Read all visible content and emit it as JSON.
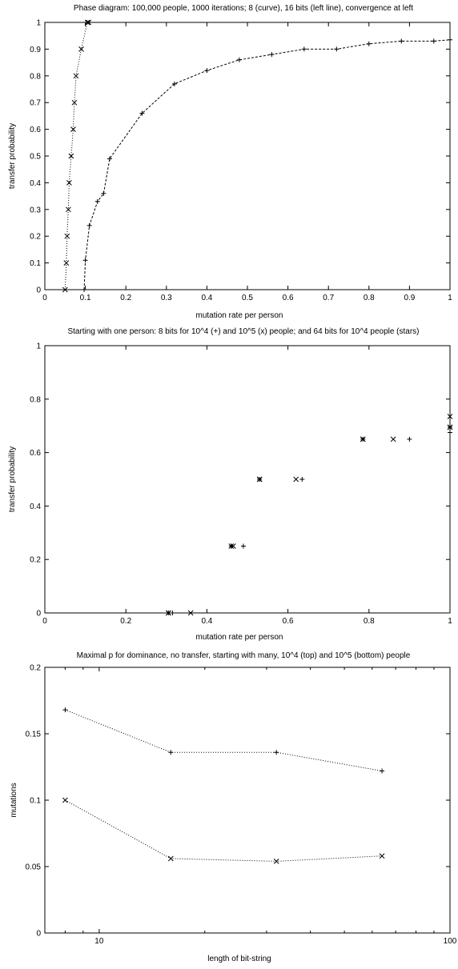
{
  "chart_data": [
    {
      "type": "line",
      "title": "Phase diagram: 100,000 people, 1000 iterations; 8 (curve), 16 bits (left line), convergence at left",
      "xlabel": "mutation rate per person",
      "ylabel": "transfer probability",
      "xlim": [
        0,
        1
      ],
      "ylim": [
        0,
        1
      ],
      "xscale": "linear",
      "xticks": [
        0,
        0.1,
        0.2,
        0.3,
        0.4,
        0.5,
        0.6,
        0.7,
        0.8,
        0.9,
        1
      ],
      "yticks": [
        0,
        0.1,
        0.2,
        0.3,
        0.4,
        0.5,
        0.6,
        0.7,
        0.8,
        0.9,
        1
      ],
      "xtick_labels": [
        "0",
        "0.1",
        "0.2",
        "0.3",
        "0.4",
        "0.5",
        "0.6",
        "0.7",
        "0.8",
        "0.9",
        "1"
      ],
      "ytick_labels": [
        "0",
        "0.1",
        "0.2",
        "0.3",
        "0.4",
        "0.5",
        "0.6",
        "0.7",
        "0.8",
        "0.9",
        "1"
      ],
      "grid": false,
      "series": [
        {
          "marker": "plus",
          "line": "dashed",
          "x": [
            0.097,
            0.1,
            0.11,
            0.13,
            0.145,
            0.16,
            0.24,
            0.32,
            0.4,
            0.48,
            0.56,
            0.64,
            0.72,
            0.8,
            0.88,
            0.96,
            1.0
          ],
          "y": [
            0.0,
            0.11,
            0.24,
            0.33,
            0.36,
            0.49,
            0.66,
            0.77,
            0.82,
            0.86,
            0.88,
            0.9,
            0.9,
            0.92,
            0.93,
            0.93,
            0.935
          ]
        },
        {
          "marker": "cross",
          "line": "dotted",
          "x": [
            0.05,
            0.053,
            0.055,
            0.058,
            0.06,
            0.065,
            0.07,
            0.073,
            0.077,
            0.09,
            0.105,
            0.108
          ],
          "y": [
            0.0,
            0.1,
            0.2,
            0.3,
            0.4,
            0.5,
            0.6,
            0.7,
            0.8,
            0.9,
            1.0,
            1.0
          ]
        }
      ]
    },
    {
      "type": "scatter",
      "title": "Starting with one person: 8 bits for 10^4 (+) and 10^5 (x) people; and 64 bits for 10^4 people (stars)",
      "xlabel": "mutation rate per person",
      "ylabel": "transfer probability",
      "xlim": [
        0,
        1
      ],
      "ylim": [
        0,
        1
      ],
      "xscale": "linear",
      "xticks": [
        0,
        0.2,
        0.4,
        0.6,
        0.8,
        1
      ],
      "yticks": [
        0,
        0.2,
        0.4,
        0.6,
        0.8,
        1
      ],
      "xtick_labels": [
        "0",
        "0.2",
        "0.4",
        "0.6",
        "0.8",
        "1"
      ],
      "ytick_labels": [
        "0",
        "0.2",
        "0.4",
        "0.6",
        "0.8",
        "1"
      ],
      "grid": false,
      "series": [
        {
          "marker": "plus",
          "x": [
            0.315,
            0.49,
            0.635,
            0.9,
            1.0
          ],
          "y": [
            0.0,
            0.25,
            0.5,
            0.65,
            0.675
          ]
        },
        {
          "marker": "cross",
          "x": [
            0.305,
            0.36,
            0.465,
            0.53,
            0.62,
            0.785,
            0.86,
            1.0,
            1.0
          ],
          "y": [
            0.0,
            0.0,
            0.25,
            0.5,
            0.5,
            0.65,
            0.65,
            0.695,
            0.735
          ]
        },
        {
          "marker": "star",
          "x": [
            0.305,
            0.46,
            0.53,
            0.785,
            1.0
          ],
          "y": [
            0.0,
            0.25,
            0.5,
            0.65,
            0.695
          ]
        }
      ]
    },
    {
      "type": "line",
      "title": "Maximal p for dominance, no transfer, starting with many, 10^4 (top) and 10^5 (bottom) people",
      "xlabel": "length of bit-string",
      "ylabel": "mutations",
      "xlim": [
        7,
        100
      ],
      "ylim": [
        0,
        0.2
      ],
      "xscale": "log",
      "xticks": [
        10,
        100
      ],
      "yticks": [
        0,
        0.05,
        0.1,
        0.15,
        0.2
      ],
      "xtick_labels": [
        "10",
        "100"
      ],
      "ytick_labels": [
        "0",
        "0.05",
        "0.1",
        "0.15",
        "0.2"
      ],
      "grid": false,
      "series": [
        {
          "marker": "plus",
          "line": "dotted",
          "x": [
            8,
            16,
            32,
            64
          ],
          "y": [
            0.168,
            0.136,
            0.136,
            0.122
          ]
        },
        {
          "marker": "cross",
          "line": "dotted",
          "x": [
            8,
            16,
            32,
            64
          ],
          "y": [
            0.1,
            0.056,
            0.054,
            0.058
          ]
        }
      ]
    }
  ]
}
